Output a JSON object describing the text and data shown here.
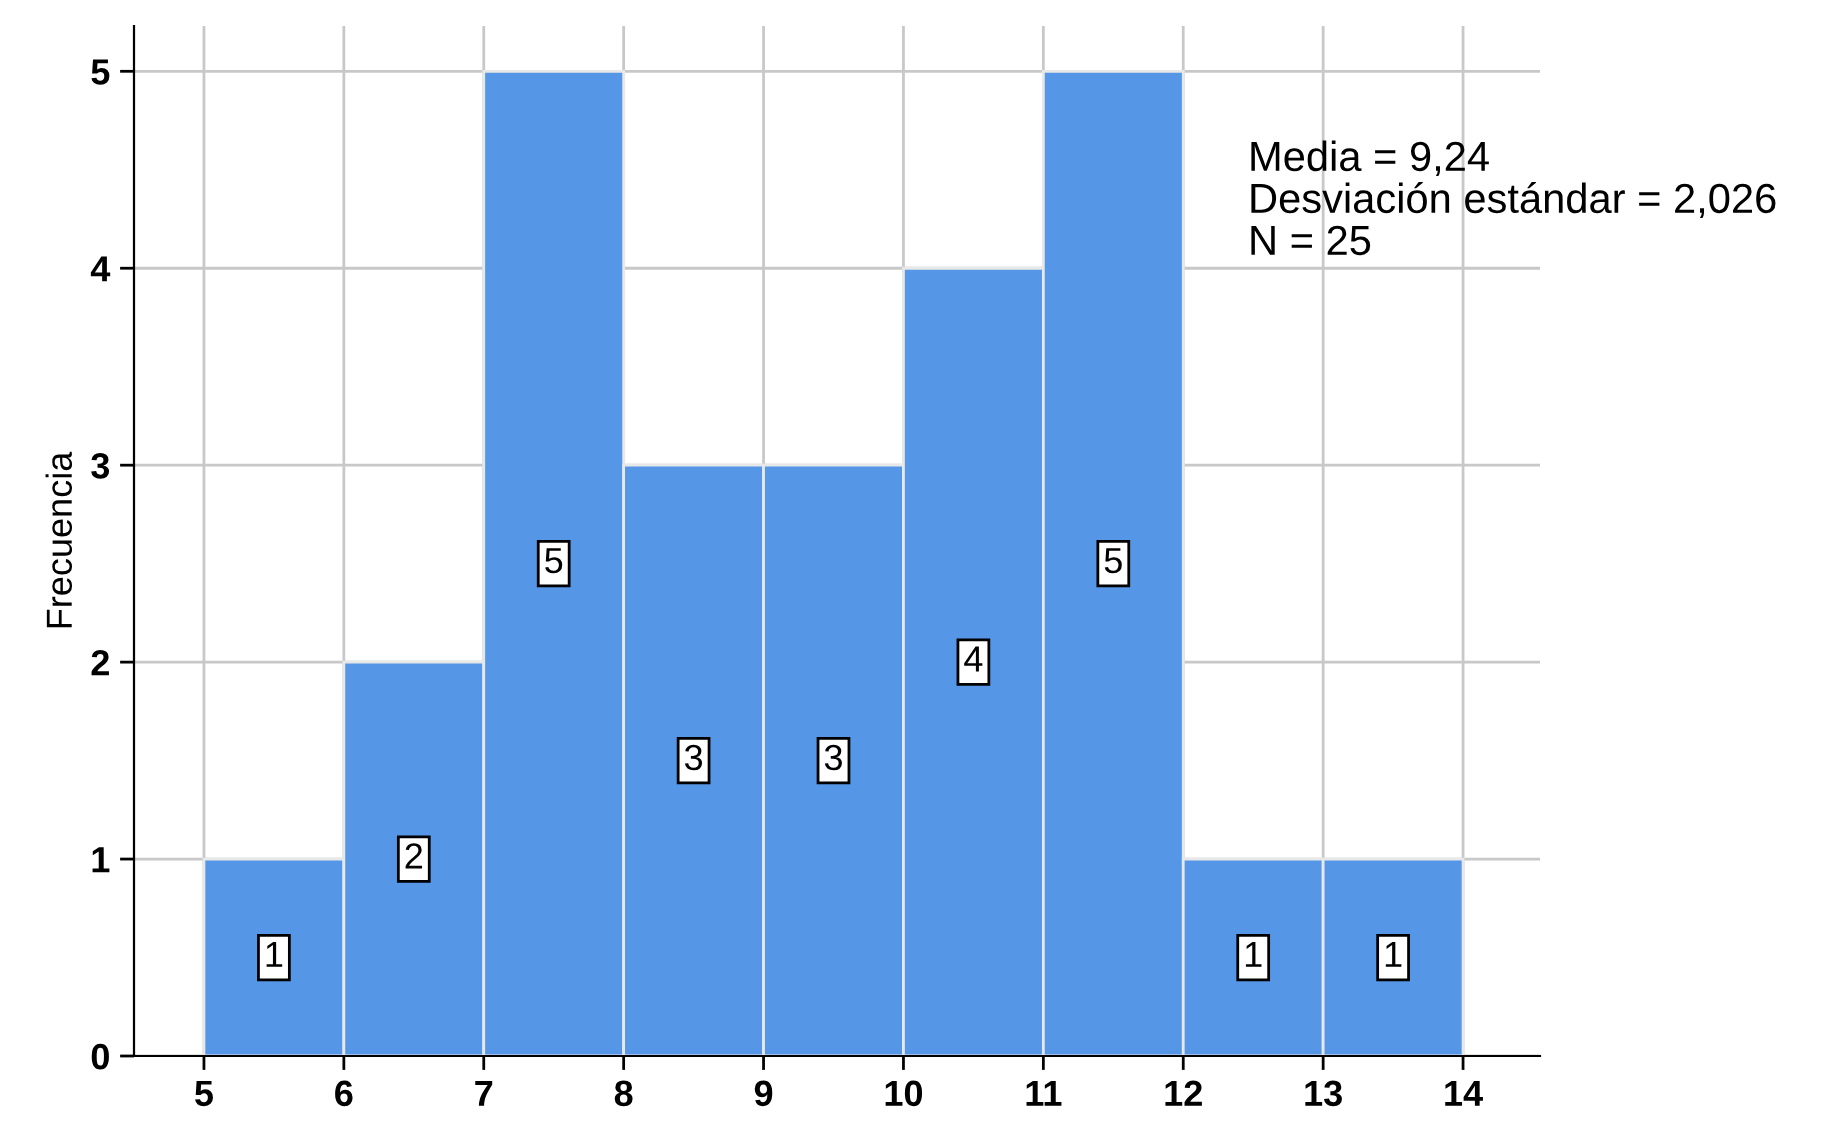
{
  "chart_data": {
    "type": "histogram",
    "ylabel": "Frecuencia",
    "bins": [
      5,
      6,
      7,
      8,
      9,
      10,
      11,
      12,
      13,
      14
    ],
    "values": [
      1,
      2,
      5,
      3,
      3,
      4,
      5,
      1,
      1
    ],
    "color": "#5596e6",
    "xlim": [
      4.5,
      14.55
    ],
    "ylim": [
      0,
      5.23
    ],
    "xticks": [
      5,
      6,
      7,
      8,
      9,
      10,
      11,
      12,
      13,
      14
    ],
    "yticks": [
      0,
      1,
      2,
      3,
      4,
      5
    ],
    "grid": true,
    "data_labels": true,
    "annotations": [
      "Media = 9,24",
      "Desviación estándar = 2,026",
      "N = 25"
    ]
  }
}
